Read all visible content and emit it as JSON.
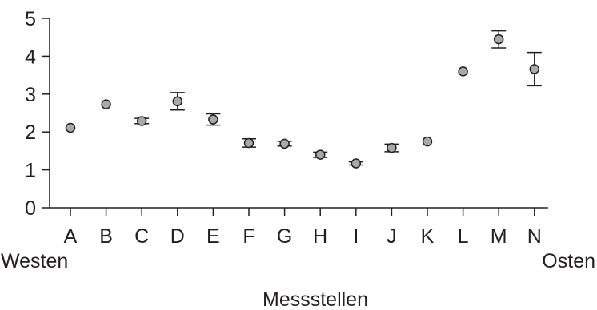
{
  "chart_data": {
    "type": "scatter",
    "xlabel": "Messstellen",
    "ylabel": "",
    "ylim": [
      0,
      5
    ],
    "yticks": [
      0,
      1,
      2,
      3,
      4,
      5
    ],
    "grid": false,
    "legend": "none",
    "categories": [
      "A",
      "B",
      "C",
      "D",
      "E",
      "F",
      "G",
      "H",
      "I",
      "J",
      "K",
      "L",
      "M",
      "N"
    ],
    "direction_labels": {
      "left": "Westen",
      "right": "Osten"
    },
    "values": [
      2.11,
      2.73,
      2.29,
      2.81,
      2.33,
      1.71,
      1.69,
      1.4,
      1.17,
      1.58,
      1.75,
      3.6,
      4.45,
      3.66
    ],
    "err_low": [
      null,
      null,
      2.22,
      2.58,
      2.18,
      1.6,
      1.63,
      1.33,
      1.13,
      1.48,
      null,
      null,
      4.22,
      3.22
    ],
    "err_high": [
      null,
      null,
      2.36,
      3.04,
      2.48,
      1.82,
      1.75,
      1.47,
      1.21,
      1.68,
      null,
      null,
      4.67,
      4.1
    ],
    "colors": {
      "marker_fill": "#a7a9ac",
      "line": "#231f20"
    }
  }
}
